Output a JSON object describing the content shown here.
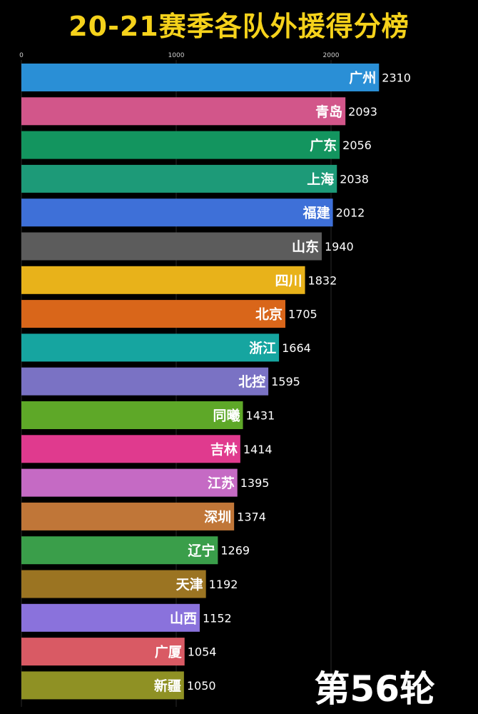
{
  "title": "20-21赛季各队外援得分榜",
  "round_label": "第56轮",
  "chart_data": {
    "type": "bar",
    "orientation": "horizontal",
    "title": "20-21赛季各队外援得分榜",
    "xlim": [
      0,
      2700
    ],
    "x_ticks": [
      "0",
      "1000",
      "2000"
    ],
    "grid": true,
    "categories": [
      "广州",
      "青岛",
      "广东",
      "上海",
      "福建",
      "山东",
      "四川",
      "北京",
      "浙江",
      "北控",
      "同曦",
      "吉林",
      "江苏",
      "深圳",
      "辽宁",
      "天津",
      "山西",
      "广厦",
      "新疆"
    ],
    "values": [
      2310,
      2093,
      2056,
      2038,
      2012,
      1940,
      1832,
      1705,
      1664,
      1595,
      1431,
      1414,
      1395,
      1374,
      1269,
      1192,
      1152,
      1054,
      1050
    ],
    "colors": [
      "#2a8fd6",
      "#d2568a",
      "#13955f",
      "#1d9a78",
      "#3e70d8",
      "#5c5c5c",
      "#e8b21a",
      "#d9661a",
      "#16a5a0",
      "#7a72c4",
      "#5ea828",
      "#e03a8e",
      "#c56ac4",
      "#c07638",
      "#3a9e4a",
      "#9b7422",
      "#8a72dc",
      "#d95a64",
      "#8f9124"
    ]
  }
}
